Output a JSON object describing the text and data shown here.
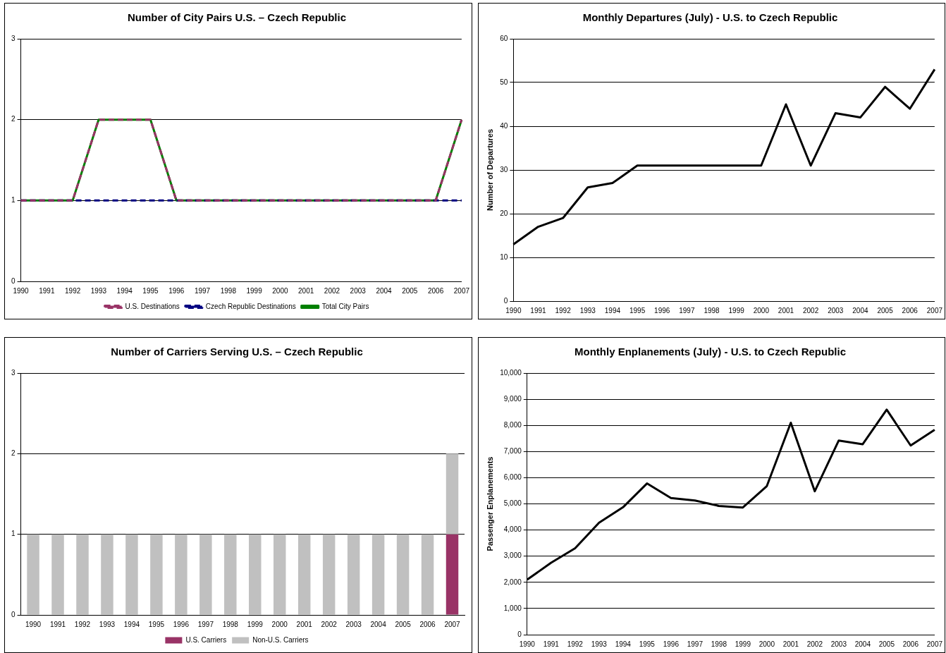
{
  "chart_data": [
    {
      "type": "line",
      "title": "Number of City Pairs U.S. – Czech Republic",
      "categories": [
        "1990",
        "1991",
        "1992",
        "1993",
        "1994",
        "1995",
        "1996",
        "1997",
        "1998",
        "1999",
        "2000",
        "2001",
        "2002",
        "2003",
        "2004",
        "2005",
        "2006",
        "2007"
      ],
      "series": [
        {
          "name": "U.S. Destinations",
          "color": "#993366",
          "line_style": "dashed",
          "values": [
            1,
            1,
            1,
            2,
            2,
            2,
            1,
            1,
            1,
            1,
            1,
            1,
            1,
            1,
            1,
            1,
            1,
            2
          ]
        },
        {
          "name": "Czech Republic Destinations",
          "color": "#000080",
          "line_style": "dashed",
          "values": [
            1,
            1,
            1,
            1,
            1,
            1,
            1,
            1,
            1,
            1,
            1,
            1,
            1,
            1,
            1,
            1,
            1,
            1
          ]
        },
        {
          "name": "Total City Pairs",
          "color": "#008000",
          "line_style": "solid",
          "values": [
            1,
            1,
            1,
            2,
            2,
            2,
            1,
            1,
            1,
            1,
            1,
            1,
            1,
            1,
            1,
            1,
            1,
            2
          ]
        }
      ],
      "ylim": [
        0,
        3
      ],
      "yticks": [
        0,
        1,
        2,
        3
      ],
      "grid": "y",
      "legend": "bottom",
      "marker": "none"
    },
    {
      "type": "line",
      "title": "Monthly Departures (July) - U.S. to Czech Republic",
      "ylabel": "Number of Departures",
      "categories": [
        "1990",
        "1991",
        "1992",
        "1993",
        "1994",
        "1995",
        "1996",
        "1997",
        "1998",
        "1999",
        "2000",
        "2001",
        "2002",
        "2003",
        "2004",
        "2005",
        "2006",
        "2007"
      ],
      "series": [
        {
          "color": "#000000",
          "line_style": "solid",
          "values": [
            13,
            17,
            19,
            26,
            27,
            31,
            31,
            31,
            31,
            31,
            31,
            45,
            31,
            43,
            42,
            49,
            44,
            53
          ]
        }
      ],
      "ylim": [
        0,
        60
      ],
      "yticks": [
        0,
        10,
        20,
        30,
        40,
        50,
        60
      ],
      "grid": "y",
      "marker": "none"
    },
    {
      "type": "bar",
      "title": "Number of Carriers Serving U.S. – Czech Republic",
      "categories": [
        "1990",
        "1991",
        "1992",
        "1993",
        "1994",
        "1995",
        "1996",
        "1997",
        "1998",
        "1999",
        "2000",
        "2001",
        "2002",
        "2003",
        "2004",
        "2005",
        "2006",
        "2007"
      ],
      "stacked": true,
      "series": [
        {
          "name": "U.S. Carriers",
          "color": "#993366",
          "values": [
            0,
            0,
            0,
            0,
            0,
            0,
            0,
            0,
            0,
            0,
            0,
            0,
            0,
            0,
            0,
            0,
            0,
            1
          ]
        },
        {
          "name": "Non-U.S. Carriers",
          "color": "#c0c0c0",
          "values": [
            1,
            1,
            1,
            1,
            1,
            1,
            1,
            1,
            1,
            1,
            1,
            1,
            1,
            1,
            1,
            1,
            1,
            1
          ]
        }
      ],
      "ylim": [
        0,
        3
      ],
      "yticks": [
        0,
        1,
        2,
        3
      ],
      "grid": "y",
      "legend": "bottom"
    },
    {
      "type": "line",
      "title": "Monthly Enplanements (July) - U.S. to Czech Republic",
      "ylabel": "Passenger Enplanements",
      "categories": [
        "1990",
        "1991",
        "1992",
        "1993",
        "1994",
        "1995",
        "1996",
        "1997",
        "1998",
        "1999",
        "2000",
        "2001",
        "2002",
        "2003",
        "2004",
        "2005",
        "2006",
        "2007"
      ],
      "series": [
        {
          "color": "#000000",
          "line_style": "solid",
          "values": [
            2100,
            2750,
            3300,
            4280,
            4870,
            5780,
            5220,
            5130,
            4920,
            4860,
            5680,
            8100,
            5480,
            7420,
            7280,
            8600,
            7230,
            7830
          ]
        }
      ],
      "ylim": [
        0,
        10000
      ],
      "yticks": [
        0,
        {
          "value": 1000,
          "label": "1,000"
        },
        {
          "value": 2000,
          "label": "2,000"
        },
        {
          "value": 3000,
          "label": "3,000"
        },
        {
          "value": 4000,
          "label": "4,000"
        },
        {
          "value": 5000,
          "label": "5,000"
        },
        {
          "value": 6000,
          "label": "6,000"
        },
        {
          "value": 7000,
          "label": "7,000"
        },
        {
          "value": 8000,
          "label": "8,000"
        },
        {
          "value": 9000,
          "label": "9,000"
        },
        {
          "value": 10000,
          "label": "10,000"
        }
      ],
      "grid": "y",
      "marker": "none"
    }
  ]
}
